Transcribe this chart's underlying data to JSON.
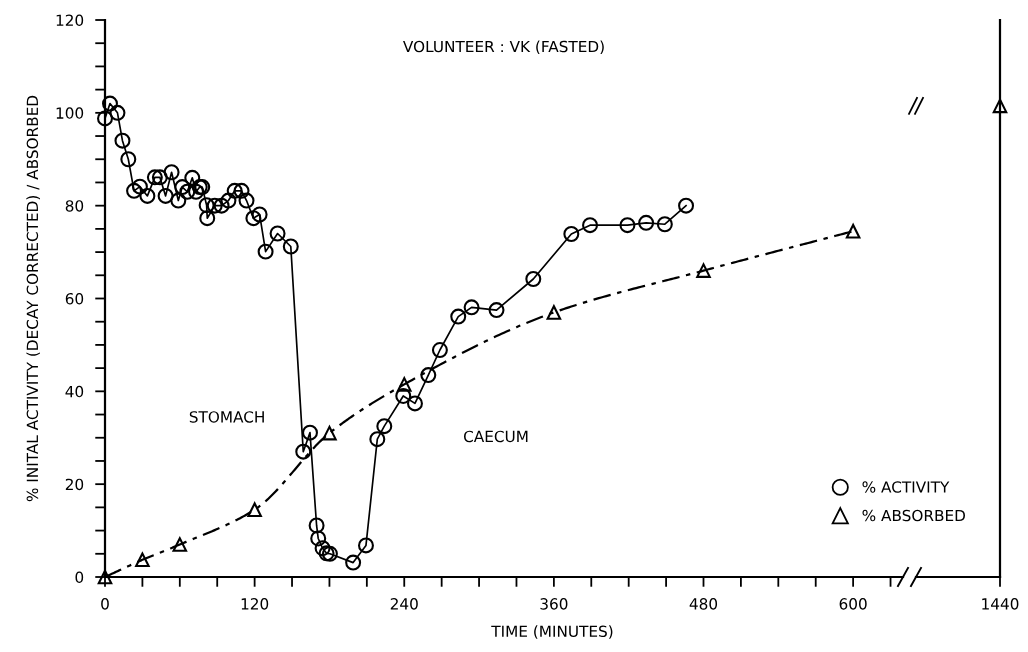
{
  "chart_data": [
    {
      "type": "line",
      "title": "VOLUNTEER : VK (FASTED)",
      "xlabel": "TIME (MINUTES)",
      "ylabel": "% INITAL ACTIVITY (DECAY CORRECTED) / ABSORBED",
      "annotations": [
        "STOMACH",
        "CAECUM"
      ],
      "xlim": [
        0,
        640
      ],
      "ylim": [
        0,
        120
      ],
      "xticks": [
        0,
        {
          "value": 30,
          "label": null
        },
        {
          "value": 60,
          "label": null
        },
        {
          "value": 90,
          "label": null
        },
        120,
        {
          "value": 150,
          "label": null
        },
        {
          "value": 180,
          "label": null
        },
        {
          "value": 210,
          "label": null
        },
        240,
        {
          "value": 270,
          "label": null
        },
        {
          "value": 300,
          "label": null
        },
        {
          "value": 330,
          "label": null
        },
        360,
        {
          "value": 390,
          "label": null
        },
        {
          "value": 420,
          "label": null
        },
        {
          "value": 450,
          "label": null
        },
        480,
        {
          "value": 510,
          "label": null
        },
        {
          "value": 540,
          "label": null
        },
        {
          "value": 570,
          "label": null
        },
        600,
        {
          "value": 630,
          "label": null
        }
      ],
      "yticks": [
        0,
        {
          "value": 5,
          "label": null
        },
        {
          "value": 10,
          "label": null
        },
        {
          "value": 15,
          "label": null
        },
        20,
        {
          "value": 25,
          "label": null
        },
        {
          "value": 30,
          "label": null
        },
        {
          "value": 35,
          "label": null
        },
        40,
        {
          "value": 45,
          "label": null
        },
        {
          "value": 50,
          "label": null
        },
        {
          "value": 55,
          "label": null
        },
        60,
        {
          "value": 65,
          "label": null
        },
        {
          "value": 70,
          "label": null
        },
        {
          "value": 75,
          "label": null
        },
        80,
        {
          "value": 85,
          "label": null
        },
        {
          "value": 90,
          "label": null
        },
        {
          "value": 95,
          "label": null
        },
        100,
        {
          "value": 105,
          "label": null
        },
        {
          "value": 110,
          "label": null
        },
        {
          "value": 115,
          "label": null
        },
        120
      ],
      "grid": false,
      "legend": "bottom right",
      "series": [
        {
          "name": "% ACTIVITY",
          "color": "#000000",
          "marker": "circle",
          "line_style": "solid",
          "x": [
            0,
            4,
            10,
            14,
            18.7,
            23.3,
            28,
            34,
            40,
            44,
            48.6,
            53.4,
            58.8,
            62,
            66,
            70,
            73,
            76,
            78,
            81.5,
            82,
            88,
            93.5,
            99,
            104,
            109.5,
            113.5,
            119,
            124,
            128.8,
            138.4,
            149,
            159,
            164.4,
            169.7,
            171,
            174.5,
            177.7,
            180.4,
            199,
            209.3,
            218.4,
            224,
            239.2,
            248.6,
            259.3,
            268.6,
            283.3,
            294,
            314,
            343.5,
            374,
            389,
            419,
            434,
            449,
            466
          ],
          "values": [
            98.8,
            102,
            100,
            94,
            90,
            83.2,
            84.1,
            82.1,
            86.1,
            86.1,
            82.1,
            87.2,
            81.1,
            84,
            83,
            86,
            83,
            84,
            84,
            80.1,
            77.3,
            80,
            80,
            81.1,
            83.2,
            83.2,
            81.1,
            77.3,
            78.1,
            70.1,
            74,
            71.2,
            27,
            31.1,
            11.1,
            8.3,
            6.2,
            5.1,
            5,
            3.1,
            6.8,
            29.7,
            32.5,
            39,
            37.4,
            43.5,
            48.9,
            56.1,
            58.1,
            57.5,
            64.2,
            73.9,
            75.8,
            75.8,
            76.3,
            76,
            80
          ]
        },
        {
          "name": "% ABSORBED",
          "color": "#000000",
          "marker": "triangle",
          "line_style": "dashdot",
          "x": [
            0,
            30,
            60,
            120,
            180,
            240,
            360,
            480,
            600
          ],
          "values": [
            0,
            3.7,
            7,
            14.5,
            31,
            41.5,
            57,
            66,
            74.5
          ]
        }
      ]
    },
    {
      "type": "line",
      "categories": [
        "1440"
      ],
      "ylim": [
        0,
        120
      ],
      "tick_labels": "x",
      "series": [
        {
          "color": "#000000",
          "marker": "triangle",
          "line_style": "dashdot",
          "values": [
            101.5
          ]
        }
      ]
    }
  ]
}
